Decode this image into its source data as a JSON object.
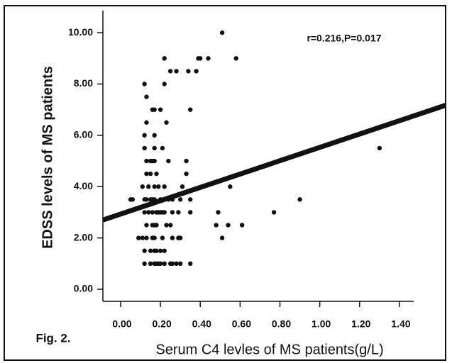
{
  "chart_data": {
    "type": "scatter",
    "xlabel": "Serum C4 levles of MS patients(g/L)",
    "ylabel": "EDSS levels of MS patients",
    "annotation": "r=0.216,P=0.017",
    "figure_label": "Fig. 2.",
    "color": "#111111",
    "x": [
      0.22,
      0.39,
      0.4,
      0.44,
      0.58,
      0.51,
      0.25,
      0.28,
      0.34,
      0.38,
      0.12,
      0.22,
      0.13,
      0.16,
      0.17,
      0.2,
      0.35,
      0.13,
      0.23,
      0.12,
      0.17,
      0.12,
      0.17,
      0.21,
      1.3,
      0.13,
      0.15,
      0.16,
      0.17,
      0.24,
      0.33,
      0.13,
      0.15,
      0.18,
      0.33,
      0.11,
      0.14,
      0.17,
      0.19,
      0.22,
      0.31,
      0.55,
      0.05,
      0.06,
      0.12,
      0.13,
      0.15,
      0.16,
      0.17,
      0.2,
      0.22,
      0.24,
      0.26,
      0.3,
      0.35,
      0.9,
      0.12,
      0.14,
      0.16,
      0.18,
      0.19,
      0.2,
      0.21,
      0.22,
      0.26,
      0.29,
      0.35,
      0.49,
      0.77,
      0.13,
      0.16,
      0.17,
      0.18,
      0.23,
      0.25,
      0.48,
      0.54,
      0.61,
      0.09,
      0.11,
      0.13,
      0.16,
      0.17,
      0.21,
      0.26,
      0.29,
      0.3,
      0.51,
      0.12,
      0.15,
      0.17,
      0.18,
      0.2,
      0.22,
      0.12,
      0.15,
      0.17,
      0.18,
      0.19,
      0.2,
      0.22,
      0.25,
      0.26,
      0.28,
      0.3,
      0.35
    ],
    "values": [
      9,
      9,
      9,
      9,
      9,
      10,
      8.5,
      8.5,
      8.5,
      8.5,
      8,
      8,
      7.5,
      7,
      7,
      7,
      7,
      6.5,
      6.5,
      6,
      6,
      5.5,
      5.5,
      5.5,
      5.5,
      5,
      5,
      5,
      5,
      5,
      5,
      4.5,
      4.5,
      4.5,
      4.5,
      4,
      4,
      4,
      4,
      4,
      4,
      4,
      3.5,
      3.5,
      3.5,
      3.5,
      3.5,
      3.5,
      3.5,
      3.5,
      3.5,
      3.5,
      3.5,
      3.5,
      3.5,
      3.5,
      3,
      3,
      3,
      3,
      3,
      3,
      3,
      3,
      3,
      3,
      3,
      3,
      3,
      2.5,
      2.5,
      2.5,
      2.5,
      2.5,
      2.5,
      2.5,
      2.5,
      2.5,
      2,
      2,
      2,
      2,
      2,
      2,
      2,
      2,
      2,
      2,
      1.5,
      1.5,
      1.5,
      1.5,
      1.5,
      1.5,
      1,
      1,
      1,
      1,
      1,
      1,
      1,
      1,
      1,
      1,
      1,
      1
    ],
    "fit": {
      "intercept": 2.93,
      "slope": 2.6
    },
    "xlim": [
      -0.089,
      1.664
    ],
    "ylim": [
      -0.47,
      10.86
    ],
    "xticks": [
      {
        "value": 0,
        "label": "0.00"
      },
      {
        "value": 0.2,
        "label": "0.20"
      },
      {
        "value": 0.4,
        "label": "0.40"
      },
      {
        "value": 0.6,
        "label": "0.60"
      },
      {
        "value": 0.8,
        "label": "0.80"
      },
      {
        "value": 1.0,
        "label": "1.00"
      },
      {
        "value": 1.2,
        "label": "1.20"
      },
      {
        "value": 1.4,
        "label": "1.40"
      }
    ],
    "yticks": [
      {
        "value": 0,
        "label": "0.00"
      },
      {
        "value": 2,
        "label": "2.00"
      },
      {
        "value": 4,
        "label": "4.00"
      },
      {
        "value": 6,
        "label": "6.00"
      },
      {
        "value": 8,
        "label": "8.00"
      },
      {
        "value": 10,
        "label": "10.00"
      }
    ]
  }
}
